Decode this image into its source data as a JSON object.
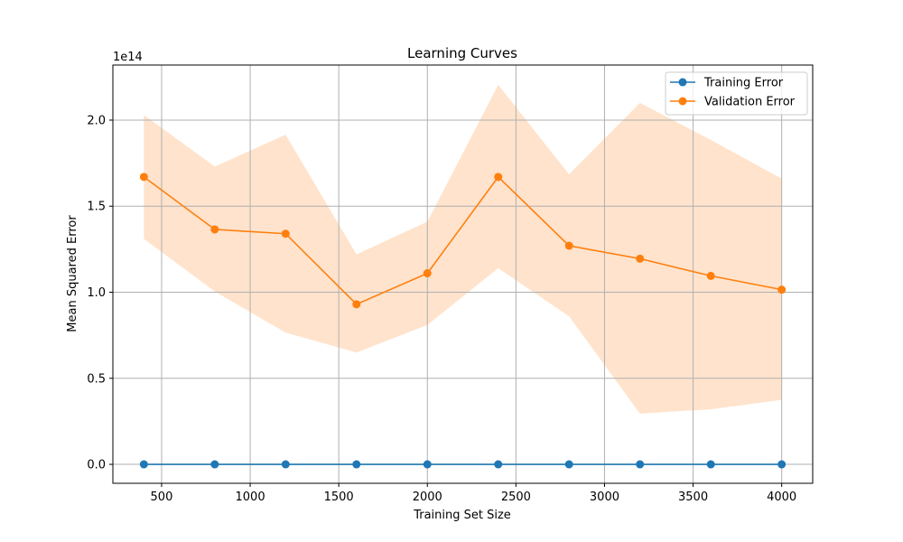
{
  "chart_data": {
    "type": "line",
    "title": "Learning Curves",
    "xlabel": "Training Set Size",
    "ylabel": "Mean Squared Error",
    "y_offset_label": "1e14",
    "y_scale_factor": 100000000000000.0,
    "xlim": [
      225,
      4175
    ],
    "ylim": [
      -0.11,
      2.32
    ],
    "x_ticks": [
      500,
      1000,
      1500,
      2000,
      2500,
      3000,
      3500,
      4000
    ],
    "x_tick_labels": [
      "500",
      "1000",
      "1500",
      "2000",
      "2500",
      "3000",
      "3500",
      "4000"
    ],
    "y_ticks": [
      0.0,
      0.5,
      1.0,
      1.5,
      2.0
    ],
    "y_tick_labels": [
      "0.0",
      "0.5",
      "1.0",
      "1.5",
      "2.0"
    ],
    "grid": true,
    "legend_position": "top-right",
    "x": [
      400,
      800,
      1200,
      1600,
      2000,
      2400,
      2800,
      3200,
      3600,
      4000
    ],
    "series": [
      {
        "name": "Training Error",
        "color": "#1f77b4",
        "values": [
          0,
          0,
          0,
          0,
          0,
          0,
          0,
          0,
          0,
          0
        ]
      },
      {
        "name": "Validation Error",
        "color": "#ff7f0e",
        "band_color": "#ffe3cc",
        "values": [
          1.67,
          1.365,
          1.34,
          0.93,
          1.11,
          1.67,
          1.27,
          1.195,
          1.095,
          1.015
        ],
        "band_upper": [
          2.03,
          1.73,
          1.915,
          1.22,
          1.41,
          2.205,
          1.685,
          2.1,
          1.885,
          1.66
        ],
        "band_lower": [
          1.31,
          1.005,
          0.765,
          0.65,
          0.81,
          1.14,
          0.86,
          0.295,
          0.32,
          0.375
        ]
      }
    ]
  }
}
